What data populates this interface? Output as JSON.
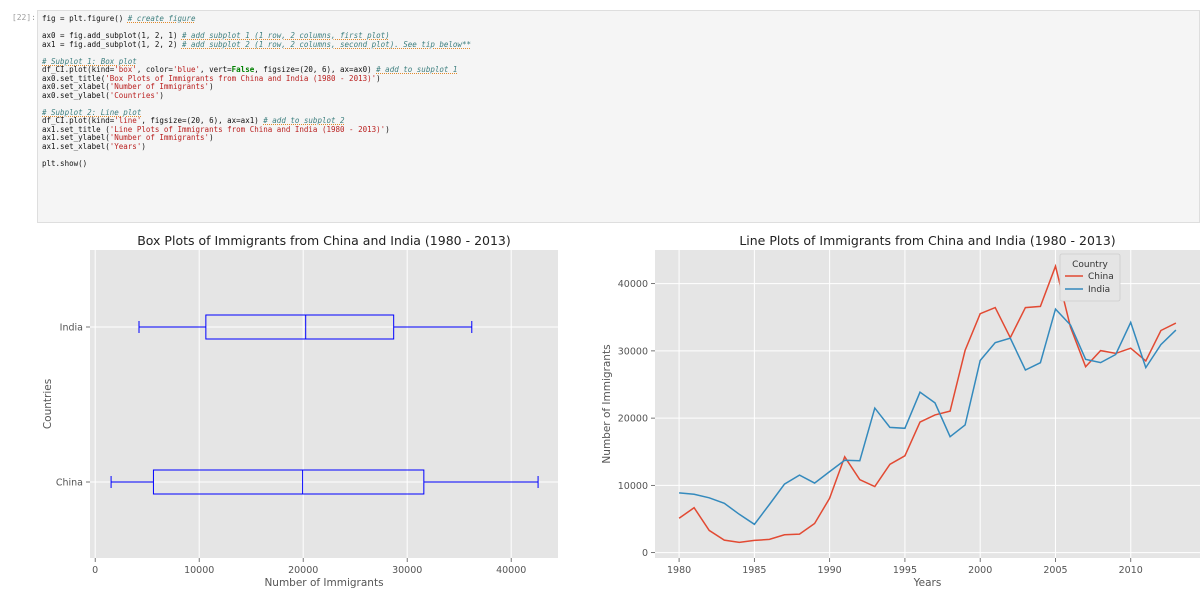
{
  "cell": {
    "prompt": "[22]:",
    "lines": [
      {
        "code": "fig = plt.figure() ",
        "comment": "# create figure"
      },
      {
        "code": "",
        "comment": ""
      },
      {
        "code": "ax0 = fig.add_subplot(1, 2, 1) ",
        "comment": "# add subplot 1 (1 row, 2 columns, first plot)"
      },
      {
        "code": "ax1 = fig.add_subplot(1, 2, 2) ",
        "comment": "# add subplot 2 (1 row, 2 columns, second plot). See tip below**"
      },
      {
        "code": "",
        "comment": ""
      },
      {
        "code": "",
        "comment": "# Subplot 1: Box plot"
      },
      {
        "code": "df_CI.plot(kind='box', color='blue', vert=False, figsize=(20, 6), ax=ax0) ",
        "comment": "# add to subplot 1"
      },
      {
        "code": "ax0.set_title('Box Plots of Immigrants from China and India (1980 - 2013)')",
        "comment": ""
      },
      {
        "code": "ax0.set_xlabel('Number of Immigrants')",
        "comment": ""
      },
      {
        "code": "ax0.set_ylabel('Countries')",
        "comment": ""
      },
      {
        "code": "",
        "comment": ""
      },
      {
        "code": "",
        "comment": "# Subplot 2: Line plot"
      },
      {
        "code": "df_CI.plot(kind='line', figsize=(20, 6), ax=ax1) ",
        "comment": "# add to subplot 2"
      },
      {
        "code": "ax1.set_title ('Line Plots of Immigrants from China and India (1980 - 2013)')",
        "comment": ""
      },
      {
        "code": "ax1.set_ylabel('Number of Immigrants')",
        "comment": ""
      },
      {
        "code": "ax1.set_xlabel('Years')",
        "comment": ""
      },
      {
        "code": "",
        "comment": ""
      },
      {
        "code": "plt.show()",
        "comment": ""
      }
    ]
  },
  "colors": {
    "box": "#0000ff",
    "china": "#e24a33",
    "india": "#348abd",
    "axes_bg": "#e5e5e5",
    "grid": "#ffffff"
  },
  "chart_data": [
    {
      "type": "box",
      "title": "Box Plots of Immigrants from China and India (1980 - 2013)",
      "xlabel": "Number of Immigrants",
      "ylabel": "Countries",
      "xlim": [
        -500,
        44500
      ],
      "xticks": [
        0,
        10000,
        20000,
        30000,
        40000
      ],
      "grid": true,
      "boxes": [
        {
          "category": "China",
          "min": 1527,
          "q1": 5600,
          "median": 19945,
          "q3": 31600,
          "max": 42584
        },
        {
          "category": "India",
          "min": 4211,
          "q1": 10640,
          "median": 20240,
          "q3": 28700,
          "max": 36210
        }
      ]
    },
    {
      "type": "line",
      "title": "Line Plots of Immigrants from China and India (1980 - 2013)",
      "xlabel": "Years",
      "ylabel": "Number of Immigrants",
      "xlim": [
        1978.4,
        2014.6
      ],
      "ylim": [
        -800,
        45000
      ],
      "xticks": [
        1980,
        1985,
        1990,
        1995,
        2000,
        2005,
        2010
      ],
      "yticks": [
        0,
        10000,
        20000,
        30000,
        40000
      ],
      "grid": true,
      "legend": {
        "title": "Country",
        "placement": "top-right"
      },
      "x": [
        1980,
        1981,
        1982,
        1983,
        1984,
        1985,
        1986,
        1987,
        1988,
        1989,
        1990,
        1991,
        1992,
        1993,
        1994,
        1995,
        1996,
        1997,
        1998,
        1999,
        2000,
        2001,
        2002,
        2003,
        2004,
        2005,
        2006,
        2007,
        2008,
        2009,
        2010,
        2011,
        2012,
        2013
      ],
      "series": [
        {
          "name": "China",
          "values": [
            5123,
            6682,
            3308,
            1863,
            1527,
            1816,
            1960,
            2643,
            2758,
            4323,
            8076,
            14255,
            10846,
            9817,
            13128,
            14398,
            19415,
            20475,
            21049,
            30069,
            35529,
            36434,
            31961,
            36439,
            36619,
            42584,
            33518,
            27642,
            30037,
            29622,
            30391,
            28502,
            33024,
            34129
          ]
        },
        {
          "name": "India",
          "values": [
            8880,
            8670,
            8147,
            7338,
            5704,
            4211,
            7150,
            10189,
            11522,
            10343,
            12041,
            13734,
            13673,
            21496,
            18620,
            18489,
            23859,
            22268,
            17241,
            18974,
            28572,
            31223,
            31889,
            27155,
            28235,
            36210,
            33848,
            28742,
            28261,
            29456,
            34235,
            27509,
            30933,
            33087
          ]
        }
      ]
    }
  ]
}
